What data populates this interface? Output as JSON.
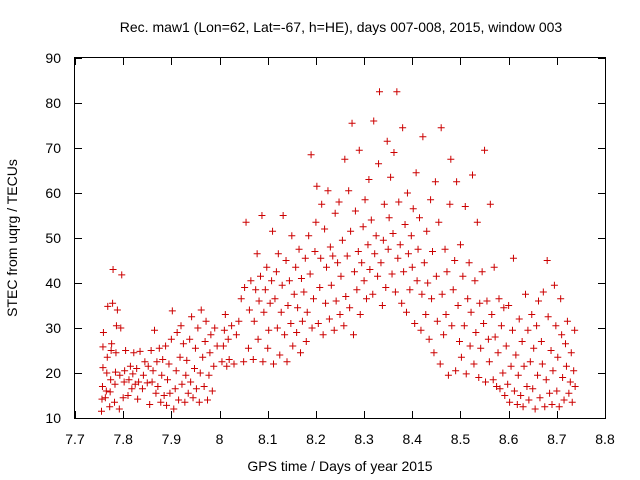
{
  "chart_data": {
    "type": "scatter",
    "title": "Rec. maw1 (Lon=62, Lat=-67, h=HE), days 007-008, 2015, window 003",
    "xlabel": "GPS time / Days of year 2015",
    "ylabel": "STEC from uqrg / TECUs",
    "xlim": [
      7.7,
      8.8
    ],
    "ylim": [
      10,
      90
    ],
    "xticks": [
      "7.7",
      "7.8",
      "7.9",
      "8",
      "8.1",
      "8.2",
      "8.3",
      "8.4",
      "8.5",
      "8.6",
      "8.7",
      "8.8"
    ],
    "yticks": [
      "10",
      "20",
      "30",
      "40",
      "50",
      "60",
      "70",
      "80",
      "90"
    ],
    "marker": "plus",
    "color": "#cc0000",
    "grid": false,
    "points": [
      [
        7.755,
        11.5
      ],
      [
        7.756,
        14.2
      ],
      [
        7.757,
        17.0
      ],
      [
        7.758,
        21.2
      ],
      [
        7.758,
        25.8
      ],
      [
        7.759,
        29.0
      ],
      [
        7.763,
        14.5
      ],
      [
        7.765,
        16.0
      ],
      [
        7.766,
        20.0
      ],
      [
        7.767,
        23.5
      ],
      [
        7.768,
        34.8
      ],
      [
        7.772,
        12.5
      ],
      [
        7.773,
        15.8
      ],
      [
        7.774,
        18.5
      ],
      [
        7.775,
        25.0
      ],
      [
        7.776,
        26.5
      ],
      [
        7.778,
        35.5
      ],
      [
        7.779,
        43.0
      ],
      [
        7.782,
        13.5
      ],
      [
        7.783,
        17.5
      ],
      [
        7.784,
        20.2
      ],
      [
        7.785,
        24.5
      ],
      [
        7.786,
        30.5
      ],
      [
        7.788,
        34.0
      ],
      [
        7.792,
        12.0
      ],
      [
        7.793,
        19.5
      ],
      [
        7.795,
        30.0
      ],
      [
        7.797,
        41.8
      ],
      [
        7.8,
        14.5
      ],
      [
        7.802,
        18.0
      ],
      [
        7.803,
        20.5
      ],
      [
        7.805,
        25.0
      ],
      [
        7.81,
        15.0
      ],
      [
        7.812,
        18.5
      ],
      [
        7.815,
        21.5
      ],
      [
        7.818,
        16.5
      ],
      [
        7.82,
        19.8
      ],
      [
        7.822,
        24.5
      ],
      [
        7.825,
        17.5
      ],
      [
        7.828,
        21.0
      ],
      [
        7.83,
        14.2
      ],
      [
        7.832,
        18.0
      ],
      [
        7.835,
        24.8
      ],
      [
        7.84,
        16.5
      ],
      [
        7.842,
        19.5
      ],
      [
        7.845,
        22.5
      ],
      [
        7.85,
        17.8
      ],
      [
        7.852,
        21.5
      ],
      [
        7.855,
        13.0
      ],
      [
        7.858,
        25.0
      ],
      [
        7.86,
        18.0
      ],
      [
        7.862,
        20.5
      ],
      [
        7.865,
        29.5
      ],
      [
        7.868,
        15.5
      ],
      [
        7.87,
        22.5
      ],
      [
        7.872,
        17.0
      ],
      [
        7.875,
        25.5
      ],
      [
        7.878,
        13.5
      ],
      [
        7.88,
        19.5
      ],
      [
        7.882,
        23.0
      ],
      [
        7.885,
        15.0
      ],
      [
        7.888,
        26.0
      ],
      [
        7.89,
        12.8
      ],
      [
        7.892,
        18.5
      ],
      [
        7.895,
        22.0
      ],
      [
        7.897,
        15.5
      ],
      [
        7.9,
        27.5
      ],
      [
        7.902,
        33.8
      ],
      [
        7.905,
        12.0
      ],
      [
        7.908,
        16.5
      ],
      [
        7.91,
        20.5
      ],
      [
        7.912,
        29.0
      ],
      [
        7.915,
        14.0
      ],
      [
        7.918,
        23.5
      ],
      [
        7.92,
        30.5
      ],
      [
        7.922,
        17.5
      ],
      [
        7.925,
        26.5
      ],
      [
        7.928,
        13.5
      ],
      [
        7.93,
        19.5
      ],
      [
        7.932,
        22.8
      ],
      [
        7.935,
        15.5
      ],
      [
        7.938,
        27.5
      ],
      [
        7.94,
        18.0
      ],
      [
        7.942,
        32.5
      ],
      [
        7.945,
        14.5
      ],
      [
        7.948,
        21.0
      ],
      [
        7.95,
        25.5
      ],
      [
        7.952,
        16.5
      ],
      [
        7.955,
        30.0
      ],
      [
        7.958,
        13.5
      ],
      [
        7.96,
        20.0
      ],
      [
        7.962,
        34.0
      ],
      [
        7.965,
        23.5
      ],
      [
        7.968,
        17.0
      ],
      [
        7.97,
        27.0
      ],
      [
        7.972,
        31.5
      ],
      [
        7.975,
        14.0
      ],
      [
        7.978,
        19.5
      ],
      [
        7.98,
        24.5
      ],
      [
        7.982,
        28.5
      ],
      [
        7.985,
        16.0
      ],
      [
        7.988,
        21.5
      ],
      [
        7.99,
        30.0
      ],
      [
        7.995,
        26.0
      ],
      [
        8.005,
        22.5
      ],
      [
        8.008,
        26.0
      ],
      [
        8.01,
        29.5
      ],
      [
        8.012,
        33.0
      ],
      [
        8.015,
        21.5
      ],
      [
        8.018,
        27.5
      ],
      [
        8.02,
        23.0
      ],
      [
        8.025,
        30.5
      ],
      [
        8.03,
        22.0
      ],
      [
        8.035,
        28.5
      ],
      [
        8.04,
        31.5
      ],
      [
        8.045,
        36.5
      ],
      [
        8.05,
        22.5
      ],
      [
        8.052,
        39.0
      ],
      [
        8.055,
        53.5
      ],
      [
        8.06,
        25.5
      ],
      [
        8.062,
        34.0
      ],
      [
        8.065,
        40.5
      ],
      [
        8.07,
        23.0
      ],
      [
        8.072,
        31.5
      ],
      [
        8.075,
        38.5
      ],
      [
        8.078,
        46.5
      ],
      [
        8.08,
        27.5
      ],
      [
        8.082,
        36.0
      ],
      [
        8.085,
        41.5
      ],
      [
        8.088,
        55.0
      ],
      [
        8.09,
        22.5
      ],
      [
        8.092,
        33.5
      ],
      [
        8.095,
        38.5
      ],
      [
        8.098,
        43.5
      ],
      [
        8.1,
        25.5
      ],
      [
        8.102,
        29.5
      ],
      [
        8.105,
        35.5
      ],
      [
        8.108,
        40.5
      ],
      [
        8.11,
        51.5
      ],
      [
        8.112,
        22.0
      ],
      [
        8.115,
        36.5
      ],
      [
        8.118,
        42.5
      ],
      [
        8.12,
        30.0
      ],
      [
        8.122,
        46.5
      ],
      [
        8.125,
        24.0
      ],
      [
        8.128,
        33.5
      ],
      [
        8.13,
        39.5
      ],
      [
        8.132,
        55.0
      ],
      [
        8.135,
        28.5
      ],
      [
        8.138,
        45.0
      ],
      [
        8.14,
        22.5
      ],
      [
        8.142,
        35.0
      ],
      [
        8.145,
        40.5
      ],
      [
        8.148,
        31.0
      ],
      [
        8.15,
        50.5
      ],
      [
        8.152,
        26.0
      ],
      [
        8.155,
        37.5
      ],
      [
        8.158,
        43.5
      ],
      [
        8.16,
        29.0
      ],
      [
        8.162,
        34.5
      ],
      [
        8.165,
        47.5
      ],
      [
        8.168,
        24.5
      ],
      [
        8.17,
        41.0
      ],
      [
        8.172,
        31.5
      ],
      [
        8.175,
        38.0
      ],
      [
        8.178,
        45.5
      ],
      [
        8.18,
        27.0
      ],
      [
        8.182,
        33.5
      ],
      [
        8.185,
        50.5
      ],
      [
        8.188,
        42.0
      ],
      [
        8.19,
        68.5
      ],
      [
        8.192,
        30.0
      ],
      [
        8.195,
        36.5
      ],
      [
        8.198,
        47.0
      ],
      [
        8.2,
        53.5
      ],
      [
        8.202,
        61.5
      ],
      [
        8.205,
        31.0
      ],
      [
        8.208,
        39.0
      ],
      [
        8.21,
        45.5
      ],
      [
        8.212,
        57.5
      ],
      [
        8.215,
        28.5
      ],
      [
        8.218,
        52.0
      ],
      [
        8.22,
        35.5
      ],
      [
        8.222,
        43.5
      ],
      [
        8.225,
        60.5
      ],
      [
        8.228,
        32.0
      ],
      [
        8.23,
        48.0
      ],
      [
        8.232,
        39.5
      ],
      [
        8.235,
        46.0
      ],
      [
        8.238,
        29.5
      ],
      [
        8.24,
        55.5
      ],
      [
        8.242,
        36.0
      ],
      [
        8.245,
        44.5
      ],
      [
        8.248,
        58.0
      ],
      [
        8.25,
        33.0
      ],
      [
        8.252,
        41.5
      ],
      [
        8.255,
        49.5
      ],
      [
        8.258,
        30.5
      ],
      [
        8.26,
        67.5
      ],
      [
        8.262,
        37.0
      ],
      [
        8.265,
        46.0
      ],
      [
        8.268,
        60.5
      ],
      [
        8.27,
        34.5
      ],
      [
        8.272,
        51.5
      ],
      [
        8.275,
        75.5
      ],
      [
        8.278,
        28.5
      ],
      [
        8.28,
        42.5
      ],
      [
        8.282,
        56.0
      ],
      [
        8.285,
        38.5
      ],
      [
        8.288,
        47.0
      ],
      [
        8.29,
        69.5
      ],
      [
        8.292,
        33.0
      ],
      [
        8.295,
        44.5
      ],
      [
        8.298,
        52.5
      ],
      [
        8.3,
        40.5
      ],
      [
        8.302,
        58.5
      ],
      [
        8.305,
        36.5
      ],
      [
        8.308,
        48.5
      ],
      [
        8.31,
        63.0
      ],
      [
        8.312,
        43.0
      ],
      [
        8.315,
        54.0
      ],
      [
        8.318,
        37.5
      ],
      [
        8.32,
        76.0
      ],
      [
        8.322,
        46.5
      ],
      [
        8.325,
        50.5
      ],
      [
        8.328,
        41.5
      ],
      [
        8.33,
        66.5
      ],
      [
        8.332,
        82.5
      ],
      [
        8.335,
        44.5
      ],
      [
        8.338,
        35.0
      ],
      [
        8.34,
        49.5
      ],
      [
        8.342,
        57.5
      ],
      [
        8.345,
        39.0
      ],
      [
        8.348,
        71.5
      ],
      [
        8.35,
        47.5
      ],
      [
        8.352,
        54.5
      ],
      [
        8.355,
        63.5
      ],
      [
        8.358,
        42.0
      ],
      [
        8.36,
        51.0
      ],
      [
        8.362,
        69.0
      ],
      [
        8.365,
        38.0
      ],
      [
        8.368,
        82.5
      ],
      [
        8.37,
        45.5
      ],
      [
        8.372,
        58.0
      ],
      [
        8.375,
        48.5
      ],
      [
        8.378,
        35.5
      ],
      [
        8.38,
        74.5
      ],
      [
        8.382,
        42.5
      ],
      [
        8.385,
        53.0
      ],
      [
        8.388,
        33.5
      ],
      [
        8.39,
        60.0
      ],
      [
        8.392,
        46.5
      ],
      [
        8.395,
        38.5
      ],
      [
        8.398,
        50.5
      ],
      [
        8.4,
        43.5
      ],
      [
        8.402,
        56.5
      ],
      [
        8.405,
        31.0
      ],
      [
        8.408,
        64.5
      ],
      [
        8.41,
        40.5
      ],
      [
        8.412,
        47.5
      ],
      [
        8.415,
        54.5
      ],
      [
        8.418,
        29.5
      ],
      [
        8.42,
        37.5
      ],
      [
        8.422,
        72.5
      ],
      [
        8.425,
        44.5
      ],
      [
        8.428,
        33.0
      ],
      [
        8.43,
        51.5
      ],
      [
        8.432,
        40.0
      ],
      [
        8.435,
        27.5
      ],
      [
        8.438,
        58.5
      ],
      [
        8.44,
        36.5
      ],
      [
        8.442,
        47.0
      ],
      [
        8.445,
        24.5
      ],
      [
        8.448,
        62.5
      ],
      [
        8.45,
        41.5
      ],
      [
        8.452,
        31.5
      ],
      [
        8.455,
        53.5
      ],
      [
        8.458,
        22.0
      ],
      [
        8.46,
        74.5
      ],
      [
        8.462,
        37.5
      ],
      [
        8.465,
        28.5
      ],
      [
        8.468,
        47.5
      ],
      [
        8.47,
        33.0
      ],
      [
        8.472,
        42.5
      ],
      [
        8.475,
        19.5
      ],
      [
        8.478,
        57.5
      ],
      [
        8.48,
        67.5
      ],
      [
        8.482,
        30.5
      ],
      [
        8.485,
        38.5
      ],
      [
        8.488,
        45.0
      ],
      [
        8.49,
        20.5
      ],
      [
        8.492,
        62.5
      ],
      [
        8.495,
        35.0
      ],
      [
        8.498,
        27.0
      ],
      [
        8.5,
        48.5
      ],
      [
        8.502,
        23.5
      ],
      [
        8.505,
        41.5
      ],
      [
        8.508,
        30.5
      ],
      [
        8.51,
        57.0
      ],
      [
        8.512,
        19.8
      ],
      [
        8.515,
        36.5
      ],
      [
        8.518,
        44.5
      ],
      [
        8.52,
        26.0
      ],
      [
        8.522,
        33.5
      ],
      [
        8.525,
        64.0
      ],
      [
        8.528,
        22.0
      ],
      [
        8.53,
        40.5
      ],
      [
        8.532,
        29.0
      ],
      [
        8.535,
        53.5
      ],
      [
        8.538,
        19.0
      ],
      [
        8.54,
        35.5
      ],
      [
        8.542,
        25.5
      ],
      [
        8.545,
        42.5
      ],
      [
        8.548,
        31.0
      ],
      [
        8.55,
        69.5
      ],
      [
        8.552,
        18.0
      ],
      [
        8.555,
        36.0
      ],
      [
        8.558,
        27.5
      ],
      [
        8.56,
        22.5
      ],
      [
        8.562,
        57.5
      ],
      [
        8.565,
        33.0
      ],
      [
        8.568,
        18.5
      ],
      [
        8.57,
        43.5
      ],
      [
        8.572,
        28.0
      ],
      [
        8.575,
        17.0
      ],
      [
        8.578,
        24.5
      ],
      [
        8.58,
        36.5
      ],
      [
        8.582,
        16.5
      ],
      [
        8.585,
        30.5
      ],
      [
        8.588,
        20.0
      ],
      [
        8.59,
        34.5
      ],
      [
        8.592,
        15.0
      ],
      [
        8.595,
        26.0
      ],
      [
        8.598,
        17.5
      ],
      [
        8.6,
        35.0
      ],
      [
        8.602,
        13.5
      ],
      [
        8.605,
        21.5
      ],
      [
        8.608,
        29.5
      ],
      [
        8.61,
        45.5
      ],
      [
        8.612,
        16.0
      ],
      [
        8.615,
        24.0
      ],
      [
        8.618,
        13.0
      ],
      [
        8.62,
        19.5
      ],
      [
        8.622,
        32.0
      ],
      [
        8.625,
        15.0
      ],
      [
        8.628,
        27.0
      ],
      [
        8.63,
        12.5
      ],
      [
        8.632,
        21.5
      ],
      [
        8.635,
        37.5
      ],
      [
        8.638,
        17.0
      ],
      [
        8.64,
        29.5
      ],
      [
        8.642,
        14.0
      ],
      [
        8.645,
        22.5
      ],
      [
        8.648,
        33.0
      ],
      [
        8.65,
        16.5
      ],
      [
        8.652,
        25.5
      ],
      [
        8.655,
        12.0
      ],
      [
        8.658,
        30.5
      ],
      [
        8.66,
        19.5
      ],
      [
        8.662,
        36.0
      ],
      [
        8.665,
        14.5
      ],
      [
        8.668,
        27.0
      ],
      [
        8.67,
        22.0
      ],
      [
        8.672,
        38.0
      ],
      [
        8.675,
        12.5
      ],
      [
        8.678,
        18.5
      ],
      [
        8.68,
        45.0
      ],
      [
        8.682,
        32.5
      ],
      [
        8.685,
        15.5
      ],
      [
        8.688,
        25.0
      ],
      [
        8.69,
        13.0
      ],
      [
        8.692,
        20.5
      ],
      [
        8.695,
        39.5
      ],
      [
        8.698,
        30.5
      ],
      [
        8.7,
        16.0
      ],
      [
        8.702,
        23.5
      ],
      [
        8.705,
        12.5
      ],
      [
        8.708,
        36.5
      ],
      [
        8.71,
        28.5
      ],
      [
        8.712,
        19.0
      ],
      [
        8.715,
        14.0
      ],
      [
        8.718,
        26.5
      ],
      [
        8.72,
        21.5
      ],
      [
        8.722,
        31.5
      ],
      [
        8.725,
        15.5
      ],
      [
        8.728,
        18.0
      ],
      [
        8.73,
        24.5
      ],
      [
        8.732,
        13.5
      ],
      [
        8.735,
        20.5
      ],
      [
        8.737,
        29.5
      ],
      [
        8.738,
        17.0
      ]
    ]
  }
}
